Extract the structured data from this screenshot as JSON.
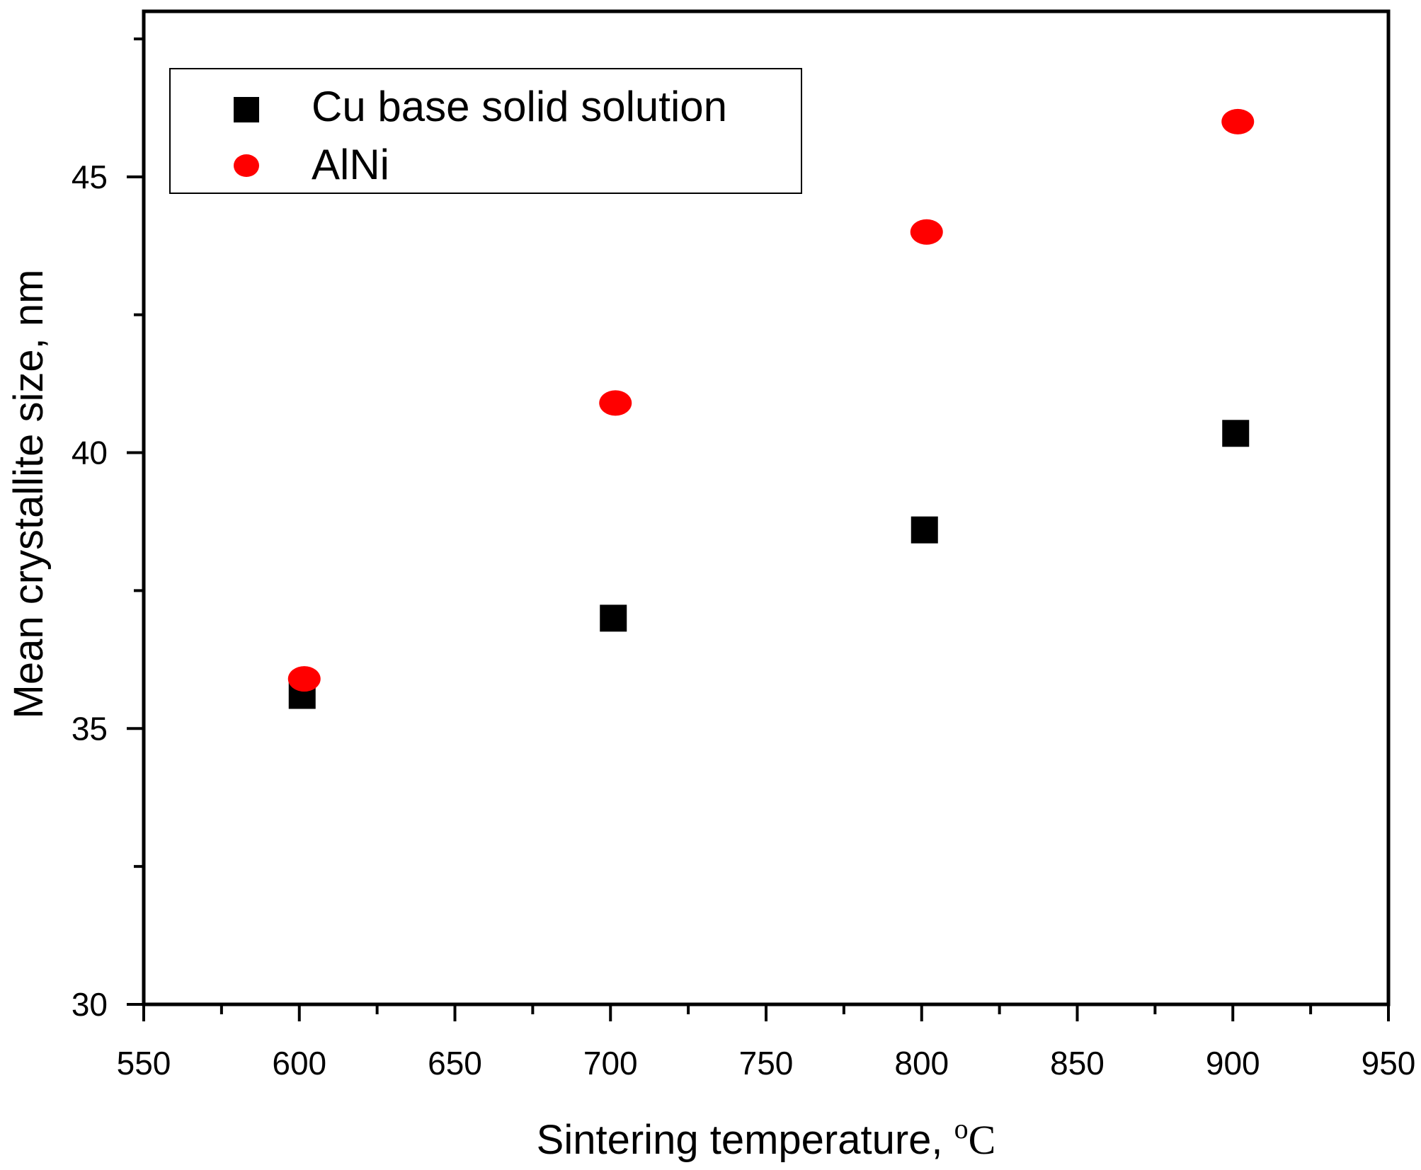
{
  "chart_data": {
    "type": "scatter",
    "title": "",
    "xlabel": "Sintering temperature, ",
    "xlabel_unit_sup": "o",
    "xlabel_unit": "C",
    "ylabel": "Mean crystallite size, nm",
    "xlim": [
      550,
      950
    ],
    "ylim": [
      30,
      48
    ],
    "x_ticks": [
      550,
      600,
      650,
      700,
      750,
      800,
      850,
      900,
      950
    ],
    "y_ticks": [
      30,
      35,
      40,
      45
    ],
    "x_minor_step": 25,
    "y_minor_step": 2.5,
    "grid": false,
    "legend_position": "top-left",
    "series": [
      {
        "name": "Cu base solid solution",
        "marker": "square",
        "color": "#000000",
        "x": [
          600,
          700,
          800,
          900
        ],
        "y": [
          35.6,
          37.0,
          38.6,
          40.35
        ]
      },
      {
        "name": "AlNi",
        "marker": "circle",
        "color": "#ff0000",
        "x": [
          600,
          700,
          800,
          900
        ],
        "y": [
          35.9,
          40.9,
          44.0,
          46.0
        ]
      }
    ]
  }
}
